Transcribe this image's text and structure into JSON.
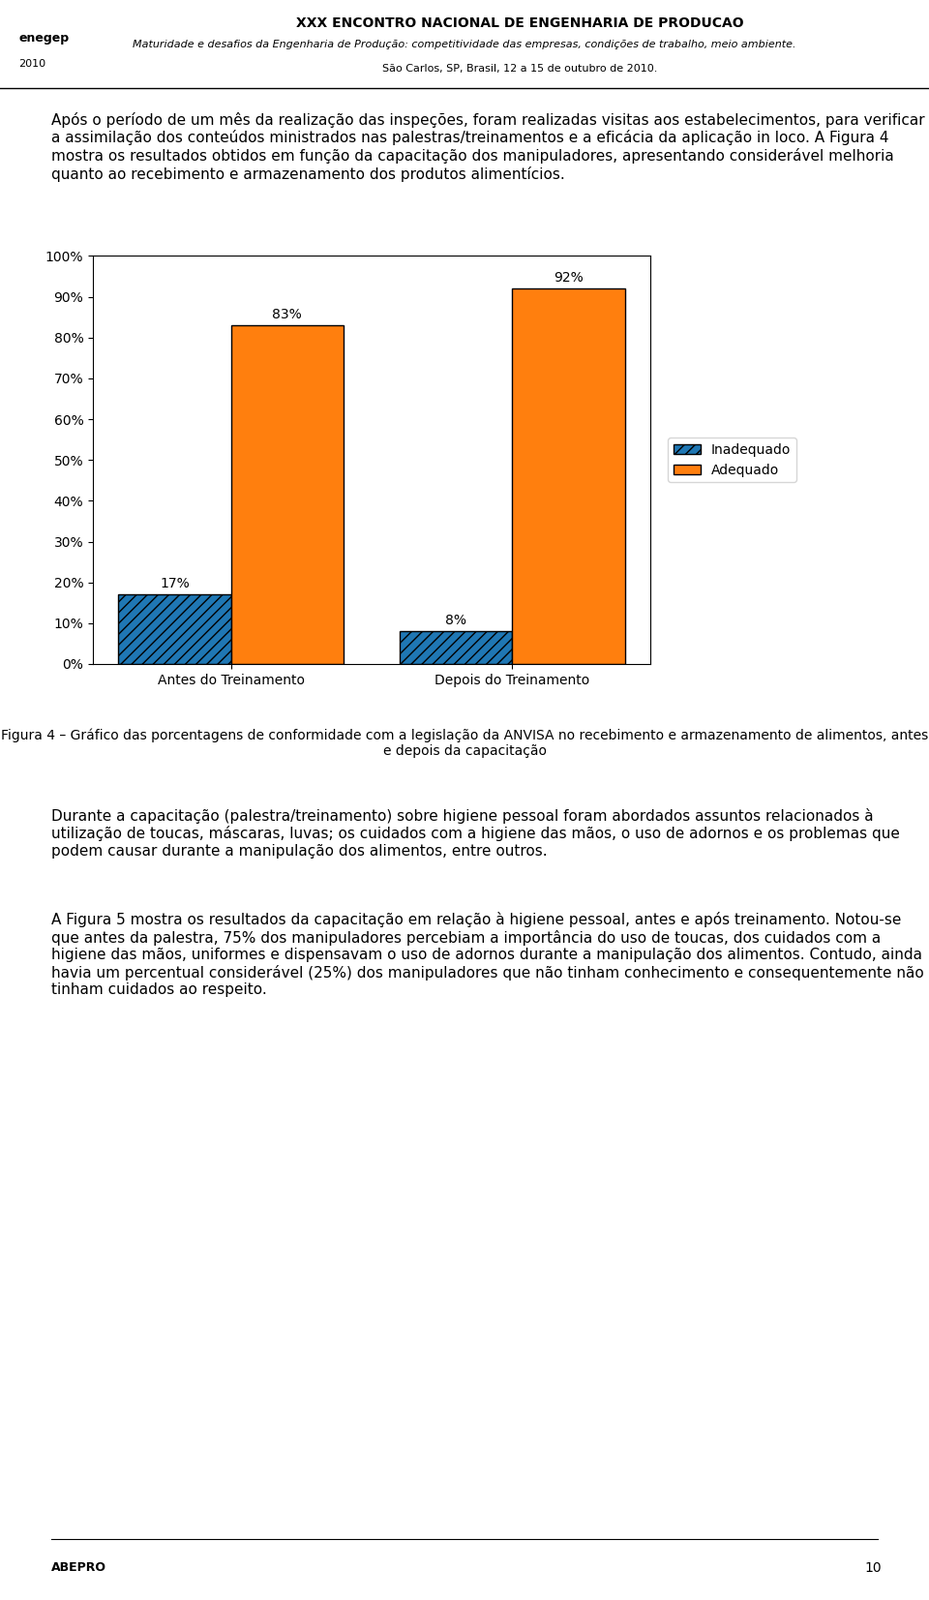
{
  "chart_data": {
    "type": "bar",
    "categories": [
      "Antes do Treinamento",
      "Depois do Treinamento"
    ],
    "series": [
      {
        "name": "Inadequado",
        "color": "#1f77b4",
        "values": [
          17,
          8
        ],
        "value_labels": [
          "17%",
          "8%"
        ]
      },
      {
        "name": "Adequado",
        "color": "#ff7f0e",
        "values": [
          83,
          92
        ],
        "value_labels": [
          "83%",
          "92%"
        ]
      }
    ],
    "ylim": [
      0,
      100
    ],
    "yticks": [
      {
        "value": 0,
        "label": "0%"
      },
      {
        "value": 10,
        "label": "10%"
      },
      {
        "value": 20,
        "label": "20%"
      },
      {
        "value": 30,
        "label": "30%"
      },
      {
        "value": 40,
        "label": "40%"
      },
      {
        "value": 50,
        "label": "50%"
      },
      {
        "value": 60,
        "label": "60%"
      },
      {
        "value": 70,
        "label": "70%"
      },
      {
        "value": 80,
        "label": "80%"
      },
      {
        "value": 90,
        "label": "90%"
      },
      {
        "value": 100,
        "label": "100%"
      }
    ],
    "stacked": false,
    "data_labels": true,
    "grid": false,
    "legend": "center left",
    "annotations": [
      "XXX ENCONTRO NACIONAL DE ENGENHARIA DE PRODUCAO",
      "Maturidade e desafios da Engenharia de Produção: competitividade das empresas, condições de trabalho, meio ambiente.",
      "São Carlos, SP, Brasil, 12 a 15 de outubro de 2010.",
      "enegep",
      "2010",
      "Após o período de um mês da realização das inspeções, foram realizadas visitas aos estabelecimentos, para verificar a assimilação dos conteúdos ministrados nas palestras/treinamentos e a eficácia da aplicação in loco. A Figura 4 mostra os resultados obtidos em função da capacitação dos manipuladores, apresentando considerável melhoria quanto ao recebimento e armazenamento dos produtos alimentícios.",
      "Figura 4 – Gráfico das porcentagens de conformidade com a legislação da ANVISA no recebimento e armazenamento de alimentos, antes e depois da capacitação",
      "Durante a capacitação (palestra/treinamento) sobre higiene pessoal foram abordados assuntos relacionados à utilização de toucas, máscaras, luvas; os cuidados com a higiene das mãos, o uso de adornos e os problemas que podem causar durante a manipulação dos alimentos, entre outros.",
      "A Figura 5 mostra os resultados da capacitação em relação à higiene pessoal, antes e após treinamento. Notou-se que antes da palestra, 75% dos manipuladores percebiam a importância do uso de toucas, dos cuidados com a higiene das mãos, uniformes e dispensavam o uso de adornos durante a manipulação dos alimentos. Contudo, ainda havia um percentual considerável (25%) dos manipuladores que não tinham conhecimento e consequentemente não tinham cuidados ao respeito.",
      "ABEPRO",
      "10"
    ]
  }
}
